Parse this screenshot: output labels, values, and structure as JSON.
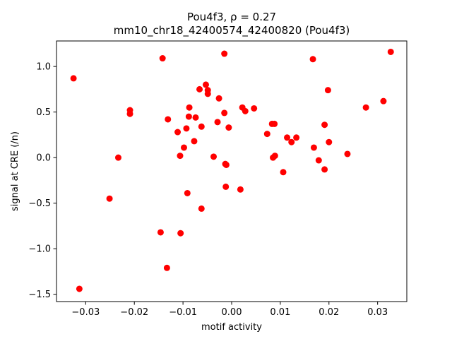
{
  "chart_data": {
    "type": "scatter",
    "title_line1": "Pou4f3, ρ = 0.27",
    "title_line2": "mm10_chr18_42400574_42400820 (Pou4f3)",
    "xlabel": "motif activity",
    "ylabel": "signal at CRE (/n)",
    "xlim": [
      -0.036,
      0.036
    ],
    "ylim": [
      -1.58,
      1.28
    ],
    "xticks": [
      -0.03,
      -0.02,
      -0.01,
      0.0,
      0.01,
      0.02,
      0.03
    ],
    "xtick_labels": [
      "−0.03",
      "−0.02",
      "−0.01",
      "0.00",
      "0.01",
      "0.02",
      "0.03"
    ],
    "yticks": [
      -1.5,
      -1.0,
      -0.5,
      0.0,
      0.5,
      1.0
    ],
    "ytick_labels": [
      "−1.5",
      "−1.0",
      "−0.5",
      "0.0",
      "0.5",
      "1.0"
    ],
    "grid": false,
    "legend": "none",
    "marker_color": "#ff0000",
    "series": [
      {
        "points": [
          [
            -0.0325,
            0.87
          ],
          [
            -0.0313,
            -1.44
          ],
          [
            -0.0251,
            -0.45
          ],
          [
            -0.0233,
            0.0
          ],
          [
            -0.0209,
            0.52
          ],
          [
            -0.0209,
            0.48
          ],
          [
            -0.0142,
            1.09
          ],
          [
            -0.0146,
            -0.82
          ],
          [
            -0.0133,
            -1.21
          ],
          [
            -0.0131,
            0.42
          ],
          [
            -0.0111,
            0.28
          ],
          [
            -0.0106,
            0.02
          ],
          [
            -0.0105,
            -0.83
          ],
          [
            -0.0098,
            0.11
          ],
          [
            -0.0093,
            0.32
          ],
          [
            -0.0091,
            -0.39
          ],
          [
            -0.0087,
            0.55
          ],
          [
            -0.0088,
            0.45
          ],
          [
            -0.0077,
            0.18
          ],
          [
            -0.0074,
            0.44
          ],
          [
            -0.0066,
            0.75
          ],
          [
            -0.0062,
            -0.56
          ],
          [
            -0.0062,
            0.34
          ],
          [
            -0.0053,
            0.8
          ],
          [
            -0.0049,
            0.74
          ],
          [
            -0.0049,
            0.7
          ],
          [
            -0.0037,
            0.01
          ],
          [
            -0.0029,
            0.39
          ],
          [
            -0.0026,
            0.65
          ],
          [
            -0.0015,
            1.14
          ],
          [
            -0.0015,
            0.49
          ],
          [
            -0.0013,
            -0.07
          ],
          [
            -0.0011,
            -0.08
          ],
          [
            -0.0012,
            -0.32
          ],
          [
            -0.0006,
            0.33
          ],
          [
            0.0018,
            -0.35
          ],
          [
            0.0022,
            0.55
          ],
          [
            0.0028,
            0.51
          ],
          [
            0.0046,
            0.54
          ],
          [
            0.0073,
            0.26
          ],
          [
            0.0083,
            0.37
          ],
          [
            0.0085,
            0.0
          ],
          [
            0.0088,
            0.37
          ],
          [
            0.0089,
            0.02
          ],
          [
            0.0106,
            -0.16
          ],
          [
            0.0114,
            0.22
          ],
          [
            0.0123,
            0.17
          ],
          [
            0.0133,
            0.22
          ],
          [
            0.0167,
            1.08
          ],
          [
            0.0169,
            0.11
          ],
          [
            0.0179,
            -0.03
          ],
          [
            0.0191,
            0.36
          ],
          [
            0.0191,
            -0.13
          ],
          [
            0.0198,
            0.74
          ],
          [
            0.02,
            0.17
          ],
          [
            0.0238,
            0.04
          ],
          [
            0.0276,
            0.55
          ],
          [
            0.0312,
            0.62
          ],
          [
            0.0327,
            1.16
          ]
        ]
      }
    ]
  }
}
